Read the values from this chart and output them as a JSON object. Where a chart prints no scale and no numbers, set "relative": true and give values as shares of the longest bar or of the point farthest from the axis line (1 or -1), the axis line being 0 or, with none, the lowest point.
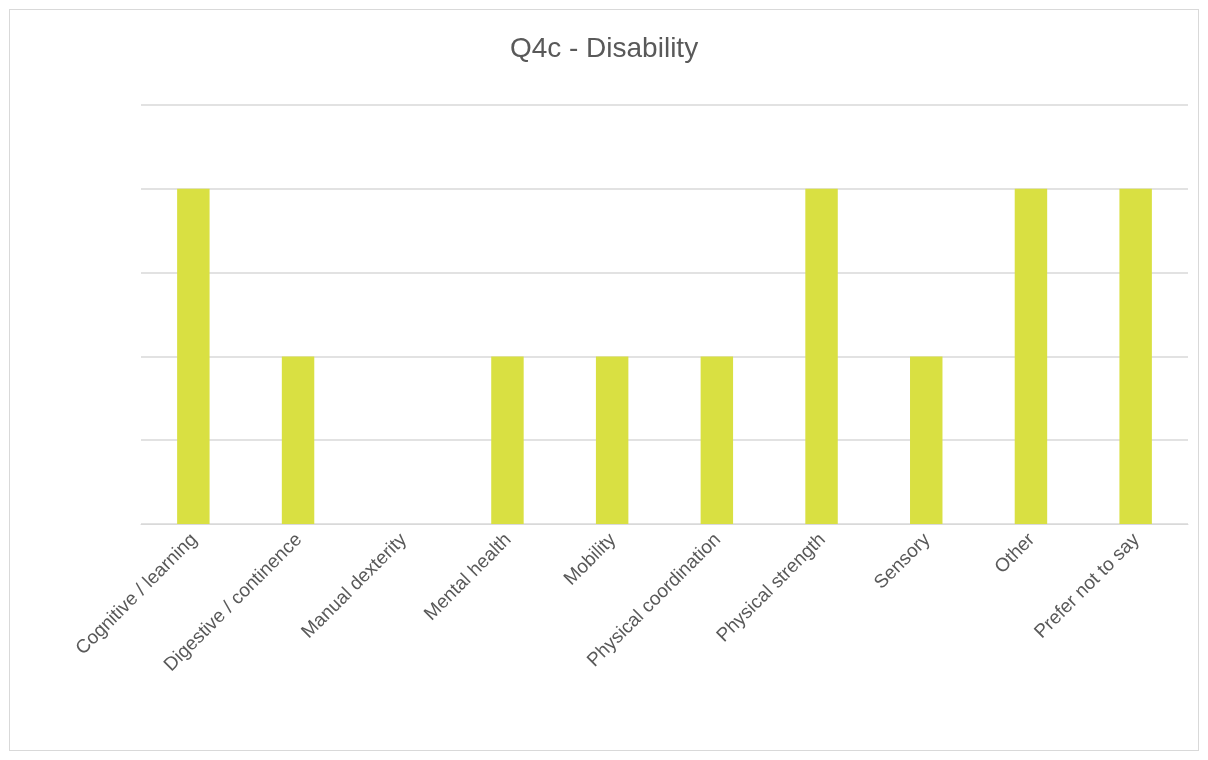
{
  "chart_data": {
    "type": "bar",
    "title": "Q4c - Disability",
    "categories": [
      "Cognitive / learning",
      "Digestive / continence",
      "Manual dexterity",
      "Mental health",
      "Mobility",
      "Physical coordination",
      "Physical strength",
      "Sensory",
      "Other",
      "Prefer not to say"
    ],
    "values": [
      1,
      0.5,
      0,
      0.5,
      0.5,
      0.5,
      1,
      0.5,
      1,
      1
    ],
    "color": "#d9e042",
    "relative": true,
    "grid": true
  }
}
